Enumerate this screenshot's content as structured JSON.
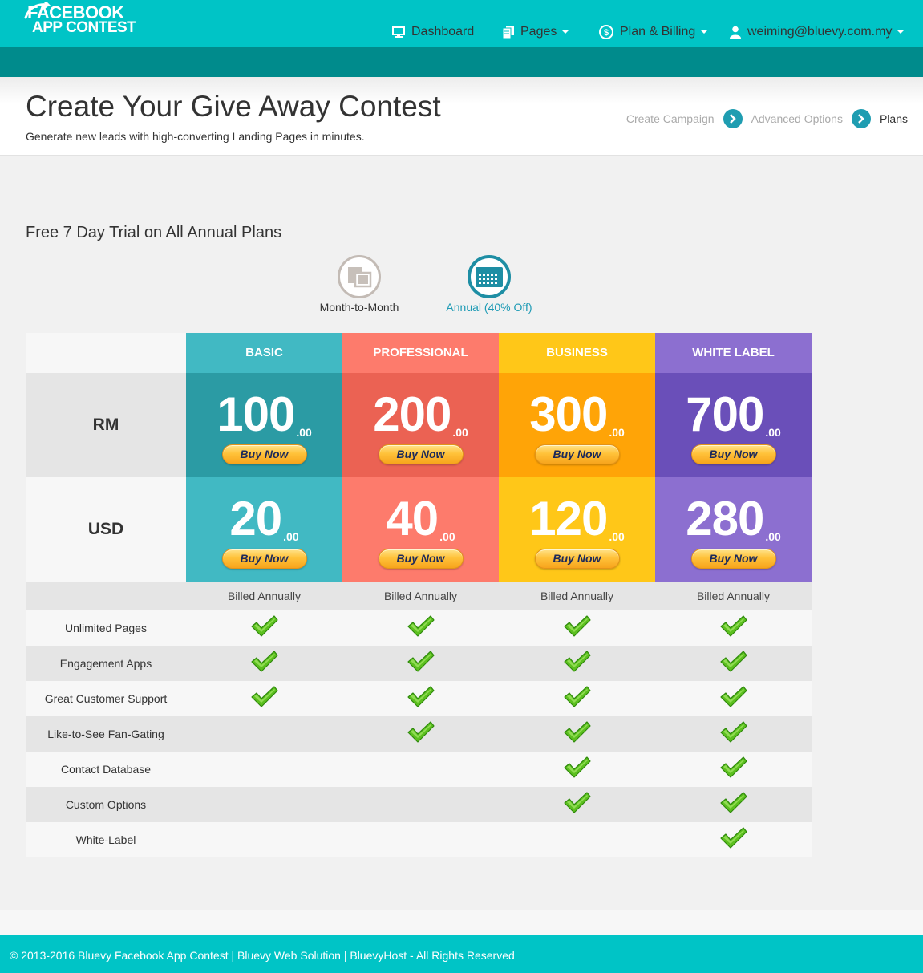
{
  "header": {
    "logo_line1": "FACEBOOK",
    "logo_line2": "APP CONTEST",
    "nav": {
      "dashboard": "Dashboard",
      "pages": "Pages",
      "plan_billing": "Plan & Billing",
      "user": "weiming@bluevy.com.my"
    }
  },
  "title_area": {
    "title": "Create Your Give Away Contest",
    "subtitle": "Generate new leads with high-converting Landing Pages in minutes.",
    "steps": [
      "Create Campaign",
      "Advanced Options",
      "Plans"
    ]
  },
  "trial_heading": "Free 7 Day Trial on All Annual Plans",
  "billing_toggle": {
    "monthly": "Month-to-Month",
    "annual": "Annual (40% Off)",
    "selected": "annual"
  },
  "pricing": {
    "currencies": [
      "RM",
      "USD"
    ],
    "buy_label": "Buy Now",
    "billed_label": "Billed Annually",
    "cents": ".00",
    "plans": [
      {
        "name": "BASIC",
        "rm": "100",
        "usd": "20",
        "head_color": "#41b9c3",
        "rm_color": "#2b9ba4",
        "usd_color": "#41b9c3"
      },
      {
        "name": "PROFESSIONAL",
        "rm": "200",
        "usd": "40",
        "head_color": "#fd7b6c",
        "rm_color": "#eb6253",
        "usd_color": "#fd7b6c"
      },
      {
        "name": "BUSINESS",
        "rm": "300",
        "usd": "120",
        "head_color": "#ffc718",
        "rm_color": "#ffa407",
        "usd_color": "#ffc718"
      },
      {
        "name": "WHITE LABEL",
        "rm": "700",
        "usd": "280",
        "head_color": "#8c6fd0",
        "rm_color": "#6a4fb9",
        "usd_color": "#8c6fd0"
      }
    ],
    "features": [
      {
        "label": "Unlimited Pages",
        "included": [
          true,
          true,
          true,
          true
        ]
      },
      {
        "label": "Engagement Apps",
        "included": [
          true,
          true,
          true,
          true
        ]
      },
      {
        "label": "Great Customer Support",
        "included": [
          true,
          true,
          true,
          true
        ]
      },
      {
        "label": "Like-to-See Fan-Gating",
        "included": [
          false,
          true,
          true,
          true
        ]
      },
      {
        "label": "Contact Database",
        "included": [
          false,
          false,
          true,
          true
        ]
      },
      {
        "label": "Custom Options",
        "included": [
          false,
          false,
          true,
          true
        ]
      },
      {
        "label": "White-Label",
        "included": [
          false,
          false,
          false,
          true
        ]
      }
    ]
  },
  "footer": "© 2013-2016 Bluevy Facebook App Contest | Bluevy Web Solution | BluevyHost - All Rights Reserved"
}
